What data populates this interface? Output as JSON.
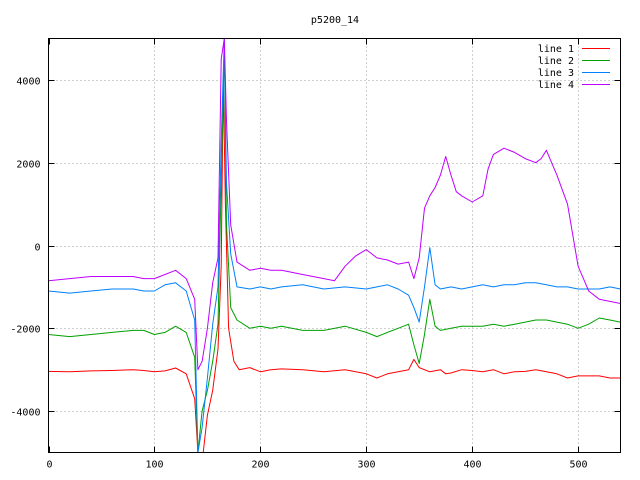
{
  "chart_data": {
    "type": "line",
    "title": "p5200_14",
    "xlabel": "",
    "ylabel": "",
    "xlim": [
      0,
      540
    ],
    "ylim": [
      -5000,
      5000
    ],
    "xticks": [
      0,
      100,
      200,
      300,
      400,
      500
    ],
    "yticks": [
      -4000,
      -2000,
      0,
      2000,
      4000
    ],
    "grid": true,
    "legend_position": "top-right",
    "series": [
      {
        "name": "line 1",
        "color": "#ff0000",
        "points": [
          [
            0,
            -3040
          ],
          [
            20,
            -3050
          ],
          [
            40,
            -3030
          ],
          [
            60,
            -3020
          ],
          [
            80,
            -3000
          ],
          [
            90,
            -3020
          ],
          [
            100,
            -3050
          ],
          [
            110,
            -3030
          ],
          [
            120,
            -2960
          ],
          [
            130,
            -3100
          ],
          [
            138,
            -3700
          ],
          [
            141,
            -5000
          ],
          [
            146,
            -5000
          ],
          [
            150,
            -4100
          ],
          [
            155,
            -3500
          ],
          [
            160,
            -2500
          ],
          [
            163,
            -500
          ],
          [
            165,
            4000
          ],
          [
            167,
            1000
          ],
          [
            170,
            -2000
          ],
          [
            175,
            -2800
          ],
          [
            180,
            -3000
          ],
          [
            190,
            -2950
          ],
          [
            200,
            -3050
          ],
          [
            210,
            -3000
          ],
          [
            220,
            -2980
          ],
          [
            240,
            -3000
          ],
          [
            260,
            -3050
          ],
          [
            280,
            -3000
          ],
          [
            300,
            -3100
          ],
          [
            310,
            -3200
          ],
          [
            320,
            -3100
          ],
          [
            330,
            -3050
          ],
          [
            340,
            -3000
          ],
          [
            345,
            -2750
          ],
          [
            350,
            -2950
          ],
          [
            360,
            -3050
          ],
          [
            370,
            -3000
          ],
          [
            375,
            -3100
          ],
          [
            380,
            -3080
          ],
          [
            390,
            -3000
          ],
          [
            400,
            -3020
          ],
          [
            410,
            -3050
          ],
          [
            420,
            -3000
          ],
          [
            430,
            -3100
          ],
          [
            440,
            -3050
          ],
          [
            450,
            -3040
          ],
          [
            460,
            -3000
          ],
          [
            470,
            -3050
          ],
          [
            480,
            -3100
          ],
          [
            490,
            -3200
          ],
          [
            500,
            -3150
          ],
          [
            510,
            -3150
          ],
          [
            520,
            -3150
          ],
          [
            530,
            -3200
          ],
          [
            540,
            -3200
          ]
        ]
      },
      {
        "name": "line 2",
        "color": "#00a000",
        "points": [
          [
            0,
            -2150
          ],
          [
            20,
            -2200
          ],
          [
            40,
            -2150
          ],
          [
            60,
            -2100
          ],
          [
            80,
            -2050
          ],
          [
            90,
            -2050
          ],
          [
            100,
            -2150
          ],
          [
            110,
            -2100
          ],
          [
            120,
            -1950
          ],
          [
            130,
            -2100
          ],
          [
            138,
            -2700
          ],
          [
            141,
            -5000
          ],
          [
            145,
            -4000
          ],
          [
            150,
            -3500
          ],
          [
            155,
            -2800
          ],
          [
            160,
            -1900
          ],
          [
            163,
            1500
          ],
          [
            166,
            4800
          ],
          [
            168,
            500
          ],
          [
            172,
            -1500
          ],
          [
            178,
            -1800
          ],
          [
            190,
            -2000
          ],
          [
            200,
            -1950
          ],
          [
            210,
            -2000
          ],
          [
            220,
            -1950
          ],
          [
            240,
            -2050
          ],
          [
            260,
            -2050
          ],
          [
            280,
            -1950
          ],
          [
            300,
            -2100
          ],
          [
            310,
            -2200
          ],
          [
            320,
            -2100
          ],
          [
            330,
            -2000
          ],
          [
            340,
            -1900
          ],
          [
            345,
            -2400
          ],
          [
            350,
            -2850
          ],
          [
            355,
            -2150
          ],
          [
            360,
            -1300
          ],
          [
            365,
            -1950
          ],
          [
            370,
            -2050
          ],
          [
            380,
            -2000
          ],
          [
            390,
            -1950
          ],
          [
            400,
            -1950
          ],
          [
            410,
            -1950
          ],
          [
            420,
            -1900
          ],
          [
            430,
            -1950
          ],
          [
            440,
            -1900
          ],
          [
            450,
            -1850
          ],
          [
            460,
            -1800
          ],
          [
            470,
            -1800
          ],
          [
            480,
            -1850
          ],
          [
            490,
            -1900
          ],
          [
            500,
            -2000
          ],
          [
            510,
            -1900
          ],
          [
            520,
            -1750
          ],
          [
            530,
            -1800
          ],
          [
            540,
            -1850
          ]
        ]
      },
      {
        "name": "line 3",
        "color": "#0080ff",
        "points": [
          [
            0,
            -1100
          ],
          [
            20,
            -1150
          ],
          [
            40,
            -1100
          ],
          [
            60,
            -1050
          ],
          [
            80,
            -1050
          ],
          [
            90,
            -1100
          ],
          [
            100,
            -1100
          ],
          [
            110,
            -950
          ],
          [
            120,
            -900
          ],
          [
            130,
            -1100
          ],
          [
            138,
            -1800
          ],
          [
            141,
            -5000
          ],
          [
            145,
            -4400
          ],
          [
            150,
            -3200
          ],
          [
            155,
            -1900
          ],
          [
            160,
            -1000
          ],
          [
            163,
            2500
          ],
          [
            166,
            5000
          ],
          [
            168,
            1500
          ],
          [
            172,
            -200
          ],
          [
            178,
            -1000
          ],
          [
            190,
            -1050
          ],
          [
            200,
            -1000
          ],
          [
            210,
            -1050
          ],
          [
            220,
            -1000
          ],
          [
            240,
            -950
          ],
          [
            260,
            -1050
          ],
          [
            280,
            -1000
          ],
          [
            300,
            -1050
          ],
          [
            310,
            -1000
          ],
          [
            320,
            -950
          ],
          [
            330,
            -1050
          ],
          [
            340,
            -1200
          ],
          [
            345,
            -1500
          ],
          [
            350,
            -1850
          ],
          [
            355,
            -1000
          ],
          [
            360,
            -50
          ],
          [
            365,
            -950
          ],
          [
            370,
            -1050
          ],
          [
            380,
            -1000
          ],
          [
            390,
            -1050
          ],
          [
            400,
            -1000
          ],
          [
            410,
            -950
          ],
          [
            420,
            -1000
          ],
          [
            430,
            -950
          ],
          [
            440,
            -950
          ],
          [
            450,
            -900
          ],
          [
            460,
            -900
          ],
          [
            470,
            -950
          ],
          [
            480,
            -1000
          ],
          [
            490,
            -1000
          ],
          [
            500,
            -1050
          ],
          [
            510,
            -1050
          ],
          [
            520,
            -1050
          ],
          [
            530,
            -1000
          ],
          [
            540,
            -1050
          ]
        ]
      },
      {
        "name": "line 4",
        "color": "#c000ff",
        "points": [
          [
            0,
            -850
          ],
          [
            20,
            -800
          ],
          [
            40,
            -750
          ],
          [
            60,
            -750
          ],
          [
            80,
            -750
          ],
          [
            90,
            -800
          ],
          [
            100,
            -800
          ],
          [
            110,
            -700
          ],
          [
            120,
            -600
          ],
          [
            130,
            -800
          ],
          [
            138,
            -1300
          ],
          [
            141,
            -3000
          ],
          [
            145,
            -2800
          ],
          [
            150,
            -2000
          ],
          [
            155,
            -900
          ],
          [
            160,
            -300
          ],
          [
            163,
            4500
          ],
          [
            166,
            5000
          ],
          [
            168,
            3000
          ],
          [
            172,
            500
          ],
          [
            178,
            -400
          ],
          [
            190,
            -600
          ],
          [
            200,
            -550
          ],
          [
            210,
            -600
          ],
          [
            220,
            -600
          ],
          [
            240,
            -700
          ],
          [
            260,
            -800
          ],
          [
            270,
            -850
          ],
          [
            280,
            -500
          ],
          [
            290,
            -250
          ],
          [
            300,
            -100
          ],
          [
            310,
            -300
          ],
          [
            320,
            -350
          ],
          [
            330,
            -450
          ],
          [
            340,
            -400
          ],
          [
            345,
            -800
          ],
          [
            350,
            -300
          ],
          [
            355,
            900
          ],
          [
            360,
            1200
          ],
          [
            365,
            1400
          ],
          [
            370,
            1700
          ],
          [
            375,
            2150
          ],
          [
            380,
            1700
          ],
          [
            385,
            1300
          ],
          [
            390,
            1200
          ],
          [
            400,
            1050
          ],
          [
            410,
            1200
          ],
          [
            415,
            1850
          ],
          [
            420,
            2200
          ],
          [
            430,
            2350
          ],
          [
            440,
            2250
          ],
          [
            450,
            2100
          ],
          [
            460,
            2000
          ],
          [
            465,
            2100
          ],
          [
            470,
            2300
          ],
          [
            475,
            2000
          ],
          [
            480,
            1700
          ],
          [
            490,
            1000
          ],
          [
            500,
            -500
          ],
          [
            505,
            -800
          ],
          [
            510,
            -1100
          ],
          [
            520,
            -1300
          ],
          [
            530,
            -1350
          ],
          [
            540,
            -1400
          ]
        ]
      }
    ]
  }
}
